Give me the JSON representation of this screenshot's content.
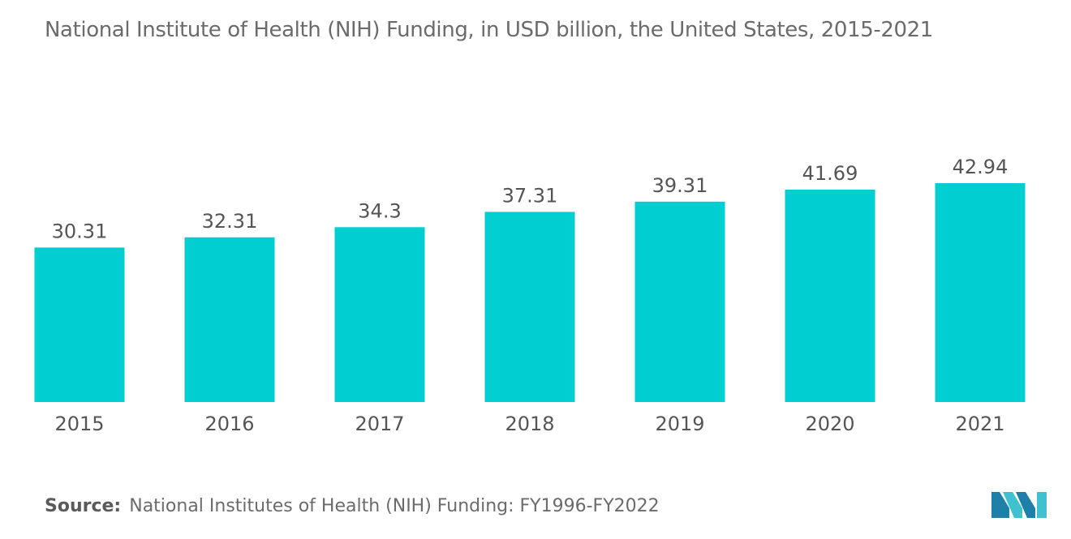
{
  "chart_data": {
    "type": "bar",
    "title": "National Institute of Health (NIH) Funding, in USD billion, the United States, 2015-2021",
    "categories": [
      "2015",
      "2016",
      "2017",
      "2018",
      "2019",
      "2020",
      "2021"
    ],
    "values": [
      30.31,
      32.31,
      34.3,
      37.31,
      39.31,
      41.69,
      42.94
    ],
    "value_labels": [
      "30.31",
      "32.31",
      "34.3",
      "37.31",
      "39.31",
      "41.69",
      "42.94"
    ],
    "xlabel": "",
    "ylabel": "",
    "ylim": [
      0,
      42.94
    ],
    "grid": false,
    "legend": "none",
    "bar_color": "#00ced1"
  },
  "source": {
    "label": "Source:",
    "text": "National Institutes of Health (NIH) Funding: FY1996-FY2022"
  },
  "logo": {
    "icon": "mordor-intelligence-logo",
    "colors": [
      "#1e7fa8",
      "#3fc1d0"
    ]
  }
}
